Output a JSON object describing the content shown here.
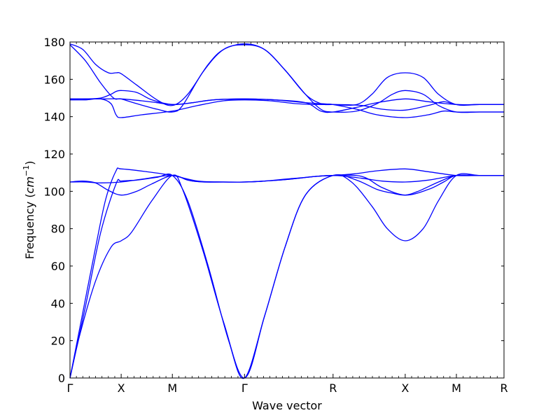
{
  "chart_data": {
    "type": "line",
    "title": "",
    "xlabel": "Wave vector",
    "ylabel_main": "Frequency (",
    "ylabel_unit": "cm",
    "ylabel_exp": "−1",
    "ylabel_close": ")",
    "ylim": [
      0,
      180
    ],
    "yticks": [
      0,
      20,
      40,
      60,
      80,
      100,
      120,
      140,
      160,
      180
    ],
    "xlim": [
      0,
      8.48
    ],
    "grid": false,
    "line_color": "#0000ff",
    "high_symmetry_points": [
      {
        "label": "Γ",
        "x": 0
      },
      {
        "label": "X",
        "x": 1.0
      },
      {
        "label": "M",
        "x": 2.0
      },
      {
        "label": "Γ",
        "x": 3.41
      },
      {
        "label": "R",
        "x": 5.14
      },
      {
        "label": "X",
        "x": 6.55
      },
      {
        "label": "M",
        "x": 7.55
      },
      {
        "label": "R",
        "x": 8.48
      }
    ],
    "series": [
      {
        "x": [
          0,
          0.2,
          0.5,
          0.8,
          1.0,
          1.2,
          1.6,
          2.0,
          2.2,
          2.6,
          3.0,
          3.41,
          3.8,
          4.2,
          4.6,
          5.14,
          5.5,
          5.9,
          6.2,
          6.55,
          6.9,
          7.2,
          7.55,
          8.0,
          8.48
        ],
        "values": [
          0,
          24,
          52,
          70,
          73.5,
          78,
          95,
          108.5,
          101,
          68,
          30,
          0,
          33,
          70,
          98,
          108.5,
          105,
          92,
          80,
          73.5,
          80,
          95,
          108.5,
          108.5,
          108.5
        ]
      },
      {
        "x": [
          0,
          0.3,
          0.6,
          0.9,
          1.0,
          1.3,
          1.7,
          2.0,
          2.3,
          2.7,
          3.1,
          3.41,
          3.8,
          4.2,
          4.6,
          5.14,
          5.6,
          6.0,
          6.3,
          6.55,
          6.8,
          7.2,
          7.55,
          8.0,
          8.48
        ],
        "values": [
          0,
          38,
          78,
          104,
          105.5,
          106,
          107.5,
          108.5,
          95,
          60,
          20,
          0,
          33,
          70,
          98,
          108.5,
          106,
          101,
          99,
          98,
          100,
          105,
          108.5,
          108.5,
          108.5
        ]
      },
      {
        "x": [
          0,
          0.2,
          0.5,
          0.7,
          0.9,
          1.0,
          1.5,
          2.0,
          2.5,
          3.0,
          3.41,
          3.8,
          4.3,
          4.8,
          5.14,
          5.6,
          6.0,
          6.55,
          7.0,
          7.55,
          8.0,
          8.48
        ],
        "values": [
          0,
          28,
          70,
          96,
          111,
          112,
          110.5,
          108.5,
          105.5,
          105,
          105,
          105.5,
          106.5,
          108,
          108.5,
          109.5,
          111,
          112,
          110.5,
          108.5,
          108.5,
          108.5
        ]
      },
      {
        "x": [
          0,
          0.3,
          0.6,
          1.0,
          1.4,
          2.0,
          2.4,
          3.0,
          3.41,
          3.8,
          4.4,
          5.14,
          5.7,
          6.1,
          6.55,
          7.0,
          7.55,
          8.0,
          8.48
        ],
        "values": [
          105,
          105,
          104.5,
          105,
          106.5,
          108.5,
          105.5,
          105,
          105,
          105.5,
          107,
          108.5,
          107,
          105.5,
          105,
          106,
          108.5,
          108.5,
          108.5
        ]
      },
      {
        "x": [
          0,
          0.25,
          0.5,
          0.75,
          1.0,
          1.3,
          1.6,
          2.0,
          2.3,
          2.6,
          3.0,
          3.41,
          3.8,
          4.3,
          4.8,
          5.14,
          5.7,
          6.1,
          6.55,
          7.0,
          7.3,
          7.55,
          8.0,
          8.48
        ],
        "values": [
          105,
          105.5,
          104.5,
          100.5,
          98,
          100,
          104,
          108.5,
          106,
          105,
          105,
          105,
          105.5,
          106.5,
          108,
          108.5,
          108,
          102,
          98,
          101,
          105,
          108.5,
          108.5,
          108.5
        ]
      },
      {
        "x": [
          0,
          0.25,
          0.5,
          0.75,
          0.9,
          1.0,
          1.3,
          1.7,
          2.0,
          2.3,
          2.7,
          3.0,
          3.41,
          3.8,
          4.2,
          4.6,
          4.9,
          5.14,
          5.6,
          5.9,
          6.2,
          6.55,
          6.9,
          7.2,
          7.55,
          8.0,
          8.48
        ],
        "values": [
          179,
          176,
          168,
          163.5,
          163.5,
          163,
          157,
          149,
          146,
          152,
          168,
          176,
          179,
          176,
          165,
          152,
          147,
          146.5,
          146.5,
          152,
          161,
          163.5,
          161,
          152,
          146.5,
          146.5,
          146.5
        ]
      },
      {
        "x": [
          0,
          0.3,
          0.6,
          0.85,
          1.0,
          1.3,
          1.7,
          2.0,
          2.2,
          2.6,
          3.0,
          3.41,
          3.8,
          4.2,
          4.6,
          4.9,
          5.14,
          5.6,
          6.0,
          6.3,
          6.55,
          6.9,
          7.2,
          7.55,
          8.0,
          8.48
        ],
        "values": [
          178.5,
          170,
          158,
          150,
          149.5,
          147,
          144,
          142.5,
          146,
          164,
          176,
          178.5,
          176,
          165,
          152,
          144,
          142.5,
          143,
          147,
          152,
          154,
          152,
          146,
          142.5,
          142.5,
          142.5
        ]
      },
      {
        "x": [
          0,
          0.3,
          0.6,
          0.8,
          0.9,
          1.0,
          1.3,
          1.6,
          2.0,
          2.4,
          2.8,
          3.41,
          4.0,
          4.6,
          4.9,
          5.14,
          5.6,
          6.0,
          6.55,
          7.0,
          7.55,
          8.0,
          8.48
        ],
        "values": [
          149.5,
          149.5,
          150,
          152,
          153.5,
          154,
          153,
          149,
          146.5,
          147.5,
          149,
          149.5,
          149,
          147.5,
          143,
          142.5,
          145,
          147.5,
          149.5,
          148,
          146.5,
          146.5,
          146.5
        ]
      },
      {
        "x": [
          0,
          0.3,
          0.6,
          0.8,
          0.9,
          1.0,
          1.4,
          2.0,
          2.5,
          3.0,
          3.41,
          3.9,
          4.4,
          4.8,
          5.14,
          5.7,
          6.1,
          6.55,
          7.0,
          7.3,
          7.55,
          8.0,
          8.48
        ],
        "values": [
          149,
          149,
          149.5,
          147,
          141,
          139.5,
          141,
          143,
          146,
          148.5,
          149,
          148.5,
          147,
          146.5,
          146.5,
          146,
          144,
          143.5,
          146,
          148,
          146.5,
          146.5,
          146.5
        ]
      },
      {
        "x": [
          0,
          0.3,
          0.6,
          1.0,
          1.4,
          1.7,
          2.0,
          2.4,
          2.8,
          3.41,
          4.0,
          4.6,
          5.0,
          5.14,
          5.6,
          6.0,
          6.55,
          7.0,
          7.3,
          7.55,
          8.0,
          8.48
        ],
        "values": [
          149.5,
          149.5,
          149.5,
          149.5,
          148.5,
          147.5,
          146.5,
          147.5,
          149,
          149.5,
          149,
          147.5,
          146.8,
          146.5,
          144,
          141,
          139.5,
          141,
          143,
          142.5,
          142.5,
          142.5
        ]
      }
    ]
  }
}
